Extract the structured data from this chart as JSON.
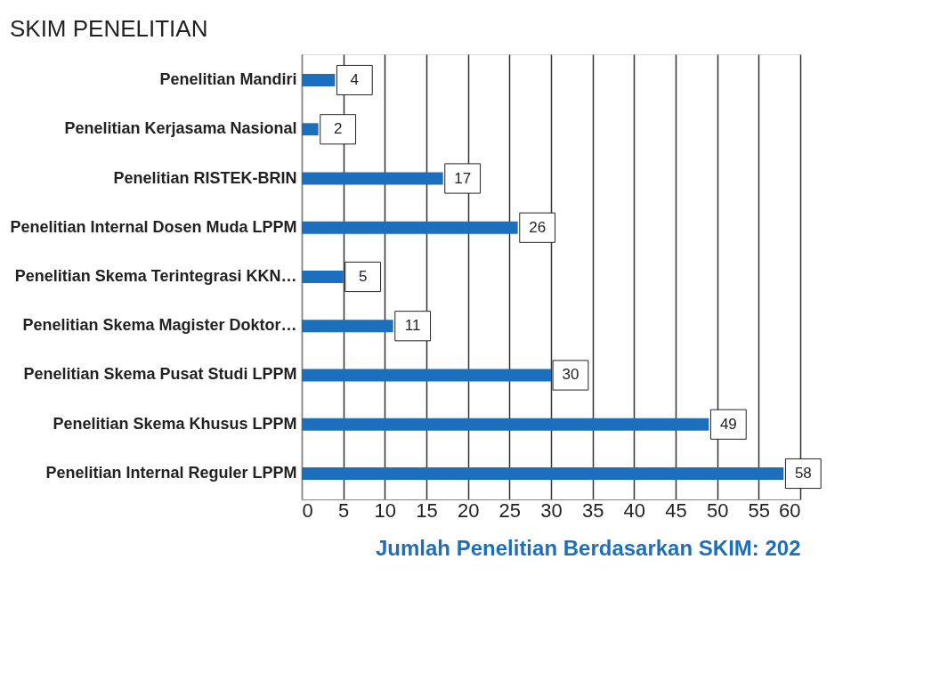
{
  "chart_data": {
    "type": "bar",
    "orientation": "horizontal",
    "title": "SKIM PENELITIAN",
    "xlabel": "Jumlah Penelitian Berdasarkan SKIM: 202",
    "categories": [
      "Penelitian Mandiri",
      "Penelitian Kerjasama Nasional",
      "Penelitian RISTEK-BRIN",
      "Penelitian Internal Dosen Muda LPPM",
      "Penelitian Skema Terintegrasi KKN…",
      "Penelitian Skema Magister Doktor…",
      "Penelitian Skema Pusat Studi LPPM",
      "Penelitian Skema Khusus LPPM",
      "Penelitian Internal Reguler LPPM"
    ],
    "values": [
      4,
      2,
      17,
      26,
      5,
      11,
      30,
      49,
      58
    ],
    "color": "#1b6fbd",
    "xlim": [
      0,
      60
    ],
    "xticks": [
      0,
      5,
      10,
      15,
      20,
      25,
      30,
      35,
      40,
      45,
      50,
      55,
      60
    ],
    "grid": "x",
    "data_labels": true
  }
}
